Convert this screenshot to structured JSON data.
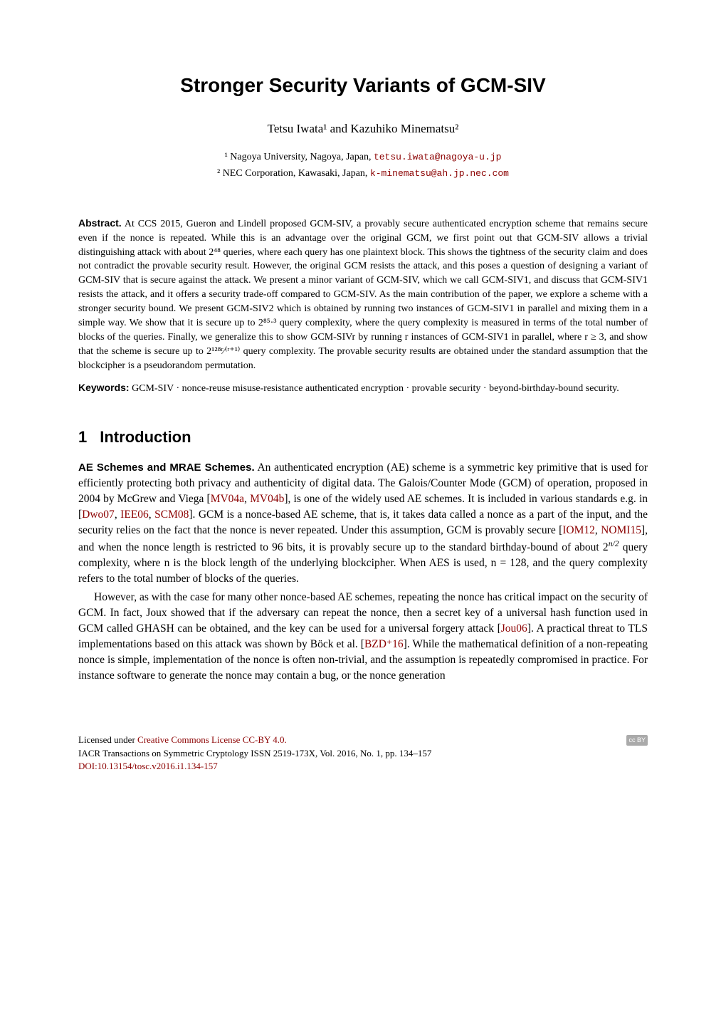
{
  "title": "Stronger Security Variants of GCM-SIV",
  "authors": "Tetsu Iwata¹ and Kazuhiko Minematsu²",
  "affiliations": {
    "a1_prefix": "¹ Nagoya University, Nagoya, Japan, ",
    "a1_email": "tetsu.iwata@nagoya-u.jp",
    "a2_prefix": "² NEC Corporation, Kawasaki, Japan, ",
    "a2_email": "k-minematsu@ah.jp.nec.com"
  },
  "abstract": {
    "label": "Abstract.",
    "text": " At CCS 2015, Gueron and Lindell proposed GCM-SIV, a provably secure authenticated encryption scheme that remains secure even if the nonce is repeated. While this is an advantage over the original GCM, we first point out that GCM-SIV allows a trivial distinguishing attack with about 2⁴⁸ queries, where each query has one plaintext block. This shows the tightness of the security claim and does not contradict the provable security result. However, the original GCM resists the attack, and this poses a question of designing a variant of GCM-SIV that is secure against the attack. We present a minor variant of GCM-SIV, which we call GCM-SIV1, and discuss that GCM-SIV1 resists the attack, and it offers a security trade-off compared to GCM-SIV. As the main contribution of the paper, we explore a scheme with a stronger security bound. We present GCM-SIV2 which is obtained by running two instances of GCM-SIV1 in parallel and mixing them in a simple way. We show that it is secure up to 2⁸⁵·³ query complexity, where the query complexity is measured in terms of the total number of blocks of the queries. Finally, we generalize this to show GCM-SIVr by running r instances of GCM-SIV1 in parallel, where r ≥ 3, and show that the scheme is secure up to 2¹²⁸ʳ⁄⁽ʳ⁺¹⁾ query complexity. The provable security results are obtained under the standard assumption that the blockcipher is a pseudorandom permutation."
  },
  "keywords": {
    "label": "Keywords:",
    "text": " GCM-SIV · nonce-reuse misuse-resistance authenticated encryption · provable security · beyond-birthday-bound security."
  },
  "section1": {
    "number": "1",
    "title": "Introduction"
  },
  "para1": {
    "heading": "AE Schemes and MRAE Schemes.",
    "text1": " An authenticated encryption (AE) scheme is a symmetric key primitive that is used for efficiently protecting both privacy and authenticity of digital data. The Galois/Counter Mode (GCM) of operation, proposed in 2004 by McGrew and Viega [",
    "cite1": "MV04a",
    "text2": ", ",
    "cite2": "MV04b",
    "text3": "], is one of the widely used AE schemes. It is included in various standards e.g. in [",
    "cite3": "Dwo07",
    "text4": ", ",
    "cite4": "IEE06",
    "text5": ", ",
    "cite5": "SCM08",
    "text6": "]. GCM is a nonce-based AE scheme, that is, it takes data called a nonce as a part of the input, and the security relies on the fact that the nonce is never repeated. Under this assumption, GCM is provably secure [",
    "cite6": "IOM12",
    "text7": ", ",
    "cite7": "NOMI15",
    "text8": "], and when the nonce length is restricted to 96 bits, it is provably secure up to the standard birthday-bound of about 2",
    "exp1": "n/2",
    "text9": " query complexity, where n is the block length of the underlying blockcipher. When AES is used, n = 128, and the query complexity refers to the total number of blocks of the queries."
  },
  "para2": {
    "text1": "However, as with the case for many other nonce-based AE schemes, repeating the nonce has critical impact on the security of GCM. In fact, Joux showed that if the adversary can repeat the nonce, then a secret key of a universal hash function used in GCM called GHASH can be obtained, and the key can be used for a universal forgery attack [",
    "cite1": "Jou06",
    "text2": "]. A practical threat to TLS implementations based on this attack was shown by Böck et al. [",
    "cite2": "BZD⁺16",
    "text3": "]. While the mathematical definition of a non-repeating nonce is simple, implementation of the nonce is often non-trivial, and the assumption is repeatedly compromised in practice. For instance software to generate the nonce may contain a bug, or the nonce generation"
  },
  "footer": {
    "license_prefix": "Licensed under ",
    "license_link": "Creative Commons License CC-BY 4.0.",
    "cc_badge": "cc BY",
    "journal": "IACR Transactions on Symmetric Cryptology ISSN 2519-173X, Vol. 2016, No. 1, pp. 134–157",
    "doi": "DOI:10.13154/tosc.v2016.i1.134-157"
  },
  "colors": {
    "link": "#8b0000",
    "text": "#000000",
    "background": "#ffffff"
  },
  "typography": {
    "title_fontsize": 28,
    "body_fontsize": 15,
    "abstract_fontsize": 14,
    "section_fontsize": 22,
    "footer_fontsize": 13
  }
}
